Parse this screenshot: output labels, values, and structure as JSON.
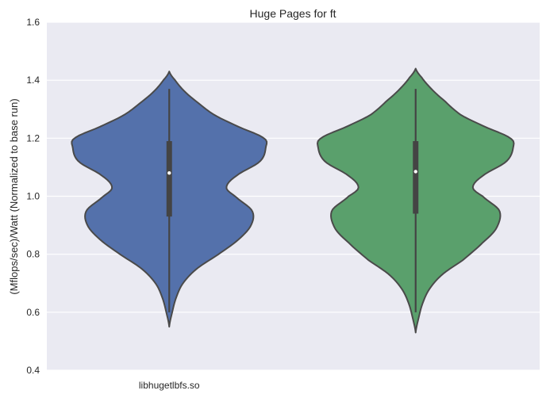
{
  "chart_data": {
    "type": "violin",
    "title": "Huge Pages for ft",
    "xlabel": "",
    "ylabel": "(Mflops/sec)/Watt (Normalized to base run)",
    "ylim": [
      0.4,
      1.6
    ],
    "yticks": [
      "0.4",
      "0.6",
      "0.8",
      "1.0",
      "1.2",
      "1.4",
      "1.6"
    ],
    "categories": [
      "libhugetlbfs.so",
      ""
    ],
    "grid": true,
    "background": "#eaeaf2",
    "series": [
      {
        "color": "#5471ab",
        "min": 0.55,
        "max": 1.43,
        "whisker_low": 0.6,
        "whisker_high": 1.37,
        "q1": 0.93,
        "median": 1.08,
        "q3": 1.19,
        "density_profile": [
          [
            0.55,
            0.0
          ],
          [
            0.6,
            0.03
          ],
          [
            0.65,
            0.07
          ],
          [
            0.7,
            0.14
          ],
          [
            0.75,
            0.28
          ],
          [
            0.8,
            0.5
          ],
          [
            0.85,
            0.7
          ],
          [
            0.9,
            0.83
          ],
          [
            0.95,
            0.84
          ],
          [
            1.0,
            0.67
          ],
          [
            1.03,
            0.58
          ],
          [
            1.07,
            0.68
          ],
          [
            1.12,
            0.92
          ],
          [
            1.17,
            0.98
          ],
          [
            1.2,
            0.96
          ],
          [
            1.24,
            0.7
          ],
          [
            1.28,
            0.46
          ],
          [
            1.32,
            0.3
          ],
          [
            1.36,
            0.16
          ],
          [
            1.4,
            0.06
          ],
          [
            1.43,
            0.0
          ]
        ]
      },
      {
        "color": "#5aa06c",
        "min": 0.53,
        "max": 1.44,
        "whisker_low": 0.6,
        "whisker_high": 1.37,
        "q1": 0.94,
        "median": 1.085,
        "q3": 1.19,
        "density_profile": [
          [
            0.53,
            0.0
          ],
          [
            0.58,
            0.03
          ],
          [
            0.63,
            0.07
          ],
          [
            0.68,
            0.14
          ],
          [
            0.73,
            0.27
          ],
          [
            0.78,
            0.48
          ],
          [
            0.84,
            0.68
          ],
          [
            0.89,
            0.82
          ],
          [
            0.95,
            0.85
          ],
          [
            1.0,
            0.68
          ],
          [
            1.03,
            0.58
          ],
          [
            1.07,
            0.68
          ],
          [
            1.12,
            0.92
          ],
          [
            1.17,
            0.99
          ],
          [
            1.2,
            0.96
          ],
          [
            1.24,
            0.7
          ],
          [
            1.28,
            0.46
          ],
          [
            1.33,
            0.29
          ],
          [
            1.37,
            0.16
          ],
          [
            1.41,
            0.06
          ],
          [
            1.44,
            0.0
          ]
        ]
      }
    ]
  }
}
